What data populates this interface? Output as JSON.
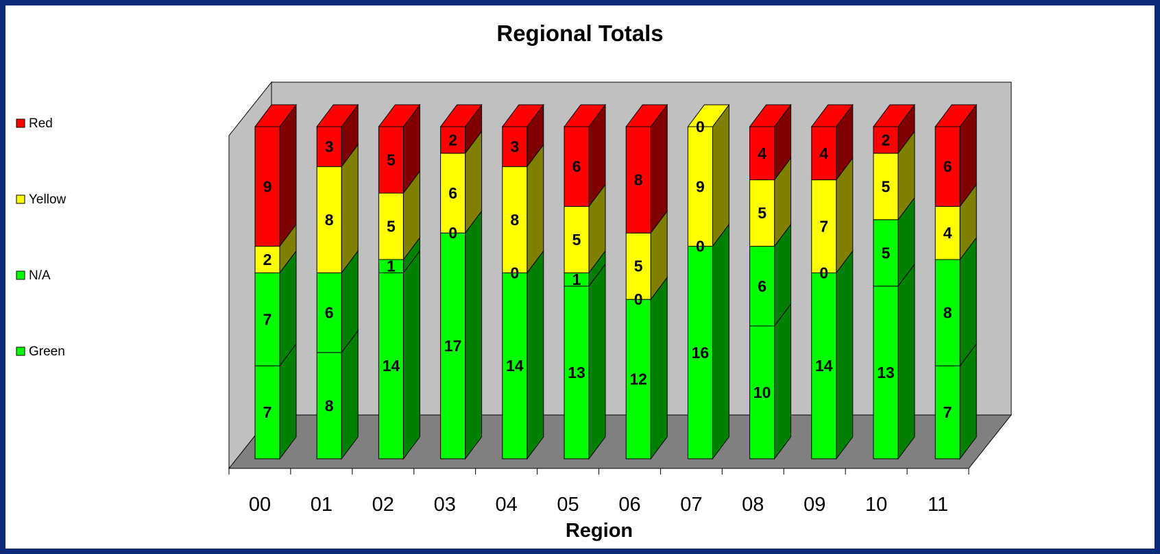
{
  "chart_data": {
    "type": "bar",
    "stacked": true,
    "three_d": true,
    "title": "Regional Totals",
    "xlabel": "Region",
    "ylabel": "",
    "categories": [
      "00",
      "01",
      "02",
      "03",
      "04",
      "05",
      "06",
      "07",
      "08",
      "09",
      "10",
      "11"
    ],
    "series": [
      {
        "name": "Green",
        "color": "#00ff00",
        "side_color": "#008000",
        "values": [
          7,
          8,
          14,
          17,
          14,
          13,
          12,
          16,
          10,
          14,
          13,
          7
        ]
      },
      {
        "name": "N/A",
        "color": "#00ff00",
        "side_color": "#008000",
        "values": [
          7,
          6,
          1,
          0,
          0,
          1,
          0,
          0,
          6,
          0,
          5,
          8
        ]
      },
      {
        "name": "Yellow",
        "color": "#ffff00",
        "side_color": "#808000",
        "values": [
          2,
          8,
          5,
          6,
          8,
          5,
          5,
          9,
          5,
          7,
          5,
          4
        ]
      },
      {
        "name": "Red",
        "color": "#ff0000",
        "side_color": "#800000",
        "values": [
          9,
          3,
          5,
          2,
          3,
          6,
          8,
          0,
          4,
          4,
          2,
          6
        ]
      }
    ],
    "ylim": [
      0,
      25
    ],
    "legend_position": "left",
    "legend_order": [
      "Red",
      "Yellow",
      "N/A",
      "Green"
    ],
    "grid": false
  }
}
